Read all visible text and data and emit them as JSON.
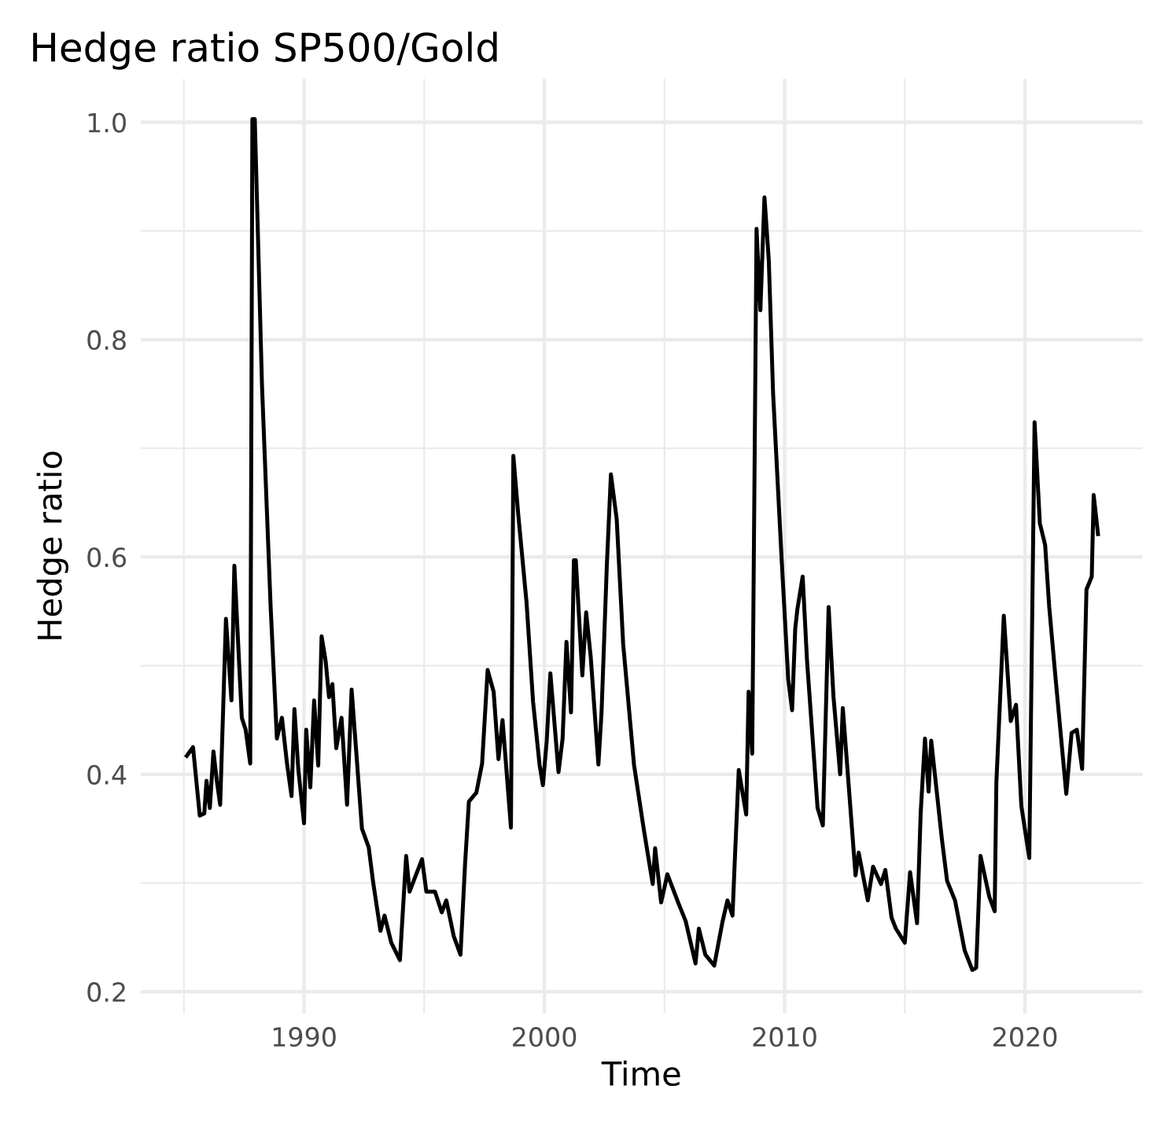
{
  "chart_data": {
    "type": "line",
    "title": "Hedge ratio SP500/Gold",
    "xlabel": "Time",
    "ylabel": "Hedge ratio",
    "series": [
      {
        "color": "#000000",
        "x": [
          1985.12,
          1985.38,
          1985.66,
          1985.85,
          1985.94,
          1986.08,
          1986.23,
          1986.37,
          1986.51,
          1986.75,
          1986.98,
          1987.1,
          1987.41,
          1987.57,
          1987.76,
          1987.85,
          1987.95,
          1988.25,
          1988.61,
          1988.87,
          1989.08,
          1989.29,
          1989.48,
          1989.6,
          1989.76,
          1990.0,
          1990.09,
          1990.26,
          1990.42,
          1990.59,
          1990.73,
          1990.9,
          1991.04,
          1991.18,
          1991.34,
          1991.56,
          1991.79,
          1991.98,
          1992.41,
          1992.69,
          1992.88,
          1993.18,
          1993.35,
          1993.63,
          1993.99,
          1994.25,
          1994.39,
          1994.58,
          1994.91,
          1995.09,
          1995.45,
          1995.73,
          1995.92,
          1996.23,
          1996.51,
          1996.7,
          1996.86,
          1997.17,
          1997.41,
          1997.64,
          1997.89,
          1998.09,
          1998.26,
          1998.61,
          1998.71,
          1998.91,
          1999.26,
          1999.53,
          1999.8,
          1999.94,
          2000.1,
          2000.25,
          2000.59,
          2000.76,
          2000.92,
          2001.11,
          2001.23,
          2001.31,
          2001.58,
          2001.74,
          2001.93,
          2002.25,
          2002.38,
          2002.6,
          2002.77,
          2003.01,
          2003.28,
          2003.73,
          2004.14,
          2004.51,
          2004.61,
          2004.86,
          2005.12,
          2005.57,
          2005.88,
          2006.29,
          2006.43,
          2006.7,
          2007.07,
          2007.42,
          2007.62,
          2007.83,
          2007.93,
          2008.09,
          2008.4,
          2008.5,
          2008.65,
          2008.83,
          2008.99,
          2009.16,
          2009.34,
          2009.52,
          2009.87,
          2010.15,
          2010.31,
          2010.44,
          2010.53,
          2010.75,
          2010.93,
          2011.37,
          2011.59,
          2011.83,
          2012.03,
          2012.31,
          2012.42,
          2012.95,
          2013.08,
          2013.46,
          2013.68,
          2014.01,
          2014.19,
          2014.45,
          2014.63,
          2015.0,
          2015.22,
          2015.51,
          2015.66,
          2015.84,
          2015.99,
          2016.1,
          2016.54,
          2016.76,
          2017.09,
          2017.49,
          2017.81,
          2017.97,
          2018.15,
          2018.52,
          2018.74,
          2018.81,
          2019.12,
          2019.41,
          2019.63,
          2019.85,
          2020.18,
          2020.4,
          2020.62,
          2020.84,
          2021.01,
          2021.28,
          2021.72,
          2021.94,
          2022.16,
          2022.38,
          2022.56,
          2022.78,
          2022.86,
          2023.04
        ],
        "values": [
          0.417,
          0.425,
          0.362,
          0.364,
          0.394,
          0.369,
          0.421,
          0.394,
          0.372,
          0.543,
          0.468,
          0.592,
          0.452,
          0.441,
          0.41,
          1.003,
          1.003,
          0.758,
          0.554,
          0.433,
          0.452,
          0.41,
          0.38,
          0.46,
          0.405,
          0.355,
          0.441,
          0.388,
          0.468,
          0.408,
          0.527,
          0.504,
          0.471,
          0.483,
          0.424,
          0.452,
          0.372,
          0.478,
          0.35,
          0.333,
          0.3,
          0.256,
          0.27,
          0.245,
          0.229,
          0.325,
          0.292,
          0.303,
          0.322,
          0.292,
          0.292,
          0.273,
          0.284,
          0.251,
          0.234,
          0.317,
          0.375,
          0.383,
          0.41,
          0.496,
          0.476,
          0.414,
          0.45,
          0.351,
          0.693,
          0.64,
          0.558,
          0.467,
          0.409,
          0.39,
          0.431,
          0.493,
          0.402,
          0.433,
          0.522,
          0.457,
          0.597,
          0.597,
          0.491,
          0.549,
          0.508,
          0.409,
          0.457,
          0.592,
          0.676,
          0.635,
          0.52,
          0.409,
          0.349,
          0.299,
          0.332,
          0.282,
          0.308,
          0.282,
          0.265,
          0.226,
          0.258,
          0.234,
          0.224,
          0.265,
          0.284,
          0.27,
          0.323,
          0.404,
          0.363,
          0.476,
          0.419,
          0.902,
          0.827,
          0.931,
          0.873,
          0.75,
          0.6,
          0.487,
          0.459,
          0.534,
          0.552,
          0.582,
          0.505,
          0.369,
          0.353,
          0.554,
          0.472,
          0.4,
          0.461,
          0.307,
          0.328,
          0.284,
          0.315,
          0.299,
          0.312,
          0.268,
          0.258,
          0.245,
          0.31,
          0.263,
          0.364,
          0.433,
          0.384,
          0.431,
          0.341,
          0.302,
          0.284,
          0.238,
          0.22,
          0.222,
          0.325,
          0.287,
          0.274,
          0.392,
          0.546,
          0.449,
          0.464,
          0.371,
          0.323,
          0.724,
          0.631,
          0.611,
          0.554,
          0.487,
          0.382,
          0.438,
          0.441,
          0.405,
          0.57,
          0.582,
          0.657,
          0.621
        ]
      }
    ],
    "xlim": [
      1983.2,
      2024.9
    ],
    "ylim": [
      0.18,
      1.04
    ],
    "xticks": [
      {
        "value": 1985,
        "label": null
      },
      1990,
      {
        "value": 1995,
        "label": null
      },
      2000,
      {
        "value": 2005,
        "label": null
      },
      2010,
      {
        "value": 2015,
        "label": null
      },
      2020
    ],
    "yticks": [
      0.2,
      {
        "value": 0.3,
        "label": null
      },
      0.4,
      {
        "value": 0.5,
        "label": null
      },
      0.6,
      {
        "value": 0.7,
        "label": null
      },
      0.8,
      {
        "value": 0.9,
        "label": null
      },
      {
        "value": 1.0,
        "label": "1.0"
      }
    ],
    "grid": true,
    "legend": false,
    "marker": "none",
    "line_style": "solid"
  }
}
